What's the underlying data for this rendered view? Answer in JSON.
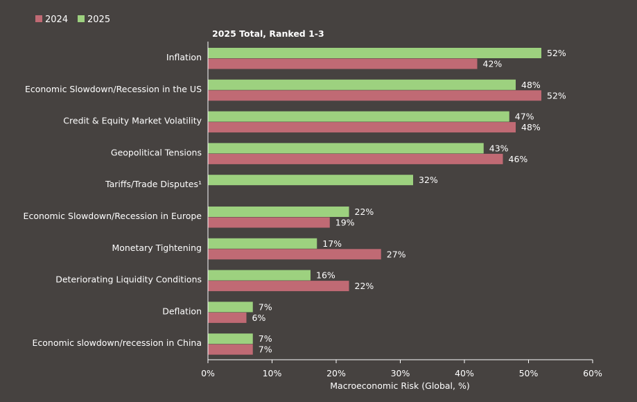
{
  "chart_data": {
    "type": "bar",
    "orientation": "horizontal",
    "title": "2025 Total, Ranked 1-3",
    "xlabel": "Macroeconomic Risk (Global, %)",
    "ylabel": "",
    "xlim": [
      0,
      60
    ],
    "x_ticks": [
      "0%",
      "10%",
      "20%",
      "30%",
      "40%",
      "50%",
      "60%"
    ],
    "grid": false,
    "legend_position": "top-left",
    "categories": [
      "Inflation",
      "Economic Slowdown/Recession in the US",
      "Credit & Equity Market Volatility",
      "Geopolitical Tensions",
      "Tariffs/Trade Disputes¹",
      "Economic Slowdown/Recession in Europe",
      "Monetary Tightening",
      "Deteriorating Liquidity Conditions",
      "Deflation",
      "Economic slowdown/recession in China"
    ],
    "series": [
      {
        "name": "2025",
        "color": "#9dd17f",
        "values": [
          52,
          48,
          47,
          43,
          32,
          22,
          17,
          16,
          7,
          7
        ],
        "labels": [
          "52%",
          "48%",
          "47%",
          "43%",
          "32%",
          "22%",
          "17%",
          "16%",
          "7%",
          "7%"
        ]
      },
      {
        "name": "2024",
        "color": "#c06a74",
        "values": [
          42,
          52,
          48,
          46,
          null,
          19,
          27,
          22,
          6,
          7
        ],
        "labels": [
          "42%",
          "52%",
          "48%",
          "46%",
          "",
          "19%",
          "27%",
          "22%",
          "6%",
          "7%"
        ]
      }
    ],
    "legend": [
      {
        "name": "2024",
        "color": "#c06a74"
      },
      {
        "name": "2025",
        "color": "#9dd17f"
      }
    ]
  }
}
